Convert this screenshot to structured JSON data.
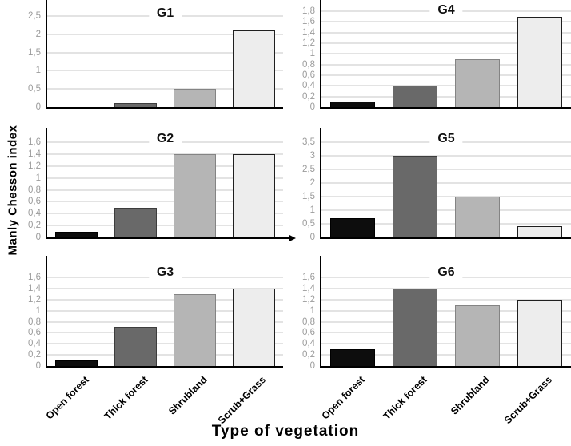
{
  "figure": {
    "ylabel": "Manly Chesson index",
    "xlabel": "Type of vegetation"
  },
  "chart_data": {
    "type": "bar",
    "title": "",
    "xlabel": "Type of vegetation",
    "ylabel": "Manly Chesson index",
    "decimal_separator": ",",
    "grid": true,
    "legend": false,
    "categories": [
      "Open forest",
      "Thick forest",
      "Shrubland",
      "Scrub+Grass"
    ],
    "bar_fill_colors": [
      "#0d0d0d",
      "#696969",
      "#b5b5b5",
      "#ededed"
    ],
    "bar_border_colors": [
      "#000000",
      "#3d3d3d",
      "#848484",
      "#1f1f1f"
    ],
    "gridline_color": "#e3e3e3",
    "tick_label_color": "#9b9b9b",
    "panels": [
      {
        "title": "G1",
        "values": [
          0,
          0.1,
          0.5,
          2.1
        ],
        "ticks": [
          0,
          0.5,
          1,
          1.5,
          2,
          2.5
        ],
        "ymax": 2.5,
        "arrow": false
      },
      {
        "title": "G2",
        "values": [
          0.1,
          0.5,
          1.4,
          1.4
        ],
        "ticks": [
          0,
          0.2,
          0.4,
          0.6,
          0.8,
          1,
          1.2,
          1.4,
          1.6
        ],
        "ymax": 1.6,
        "arrow": true
      },
      {
        "title": "G3",
        "values": [
          0.1,
          0.7,
          1.3,
          1.4
        ],
        "ticks": [
          0,
          0.2,
          0.4,
          0.6,
          0.8,
          1,
          1.2,
          1.4,
          1.6
        ],
        "ymax": 1.6,
        "arrow": false
      },
      {
        "title": "G4",
        "values": [
          0.1,
          0.4,
          0.9,
          1.7
        ],
        "ticks": [
          0,
          0.2,
          0.4,
          0.6,
          0.8,
          1,
          1.2,
          1.4,
          1.6,
          1.8
        ],
        "ymax": 1.8,
        "arrow": false
      },
      {
        "title": "G5",
        "values": [
          0.7,
          3,
          1.5,
          0.4
        ],
        "ticks": [
          0,
          0.5,
          1,
          1.5,
          2,
          2.5,
          3,
          3.5
        ],
        "ymax": 3.5,
        "arrow": false
      },
      {
        "title": "G6",
        "values": [
          0.3,
          1.4,
          1.1,
          1.2
        ],
        "ticks": [
          0,
          0.2,
          0.4,
          0.6,
          0.8,
          1,
          1.2,
          1.4,
          1.6
        ],
        "ymax": 1.6,
        "arrow": false
      }
    ]
  }
}
